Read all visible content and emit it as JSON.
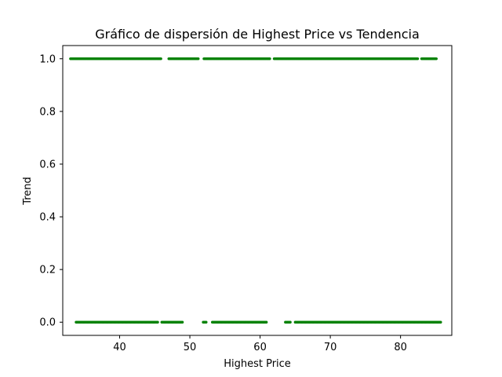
{
  "chart_data": {
    "type": "scatter",
    "title": "Gráfico de dispersión de Highest Price vs Tendencia",
    "xlabel": "Highest Price",
    "ylabel": "Trend",
    "xlim": [
      31.9,
      87.3
    ],
    "ylim": [
      -0.05,
      1.05
    ],
    "xticks": [
      40,
      50,
      60,
      70,
      80
    ],
    "xtick_labels": [
      "40",
      "50",
      "60",
      "70",
      "80"
    ],
    "yticks": [
      0.0,
      0.2,
      0.4,
      0.6,
      0.8,
      1.0
    ],
    "ytick_labels": [
      "0.0",
      "0.2",
      "0.4",
      "0.6",
      "0.8",
      "1.0"
    ],
    "grid": false,
    "legend": "none",
    "marker_color": "#008000",
    "series": [
      {
        "y": 1.0,
        "x_segments": [
          [
            33.0,
            46.0
          ],
          [
            47.0,
            51.2
          ],
          [
            52.0,
            61.5
          ],
          [
            62.0,
            82.5
          ],
          [
            83.0,
            85.2
          ]
        ]
      },
      {
        "y": 0.0,
        "x_segments": [
          [
            33.8,
            45.5
          ],
          [
            46.0,
            49.0
          ],
          [
            51.9,
            52.4
          ],
          [
            53.2,
            61.0
          ],
          [
            63.6,
            64.3
          ],
          [
            65.0,
            85.8
          ]
        ]
      }
    ]
  }
}
